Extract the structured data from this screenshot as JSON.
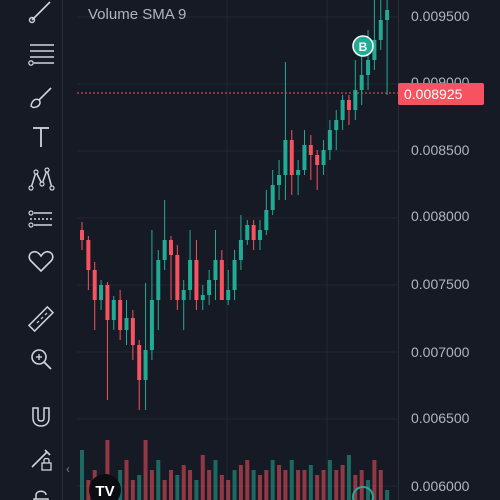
{
  "legend": {
    "text": "Volume SMA 9"
  },
  "price_scale": {
    "labels": [
      "0.009500",
      "0.009000",
      "0.008500",
      "0.008000",
      "0.007500",
      "0.007000",
      "0.006500",
      "0.006000"
    ]
  },
  "last_price": {
    "value": "0.008925",
    "color": "#f7525f"
  },
  "buy_marker": {
    "label": "B",
    "color": "#22ab94"
  },
  "toolbar": {
    "icons": [
      "trend-line-icon",
      "horizontal-lines-icon",
      "brush-icon",
      "text-icon",
      "pattern-icon",
      "prediction-icon",
      "favorites-icon",
      "ruler-icon",
      "zoom-icon",
      "magnet-icon",
      "lock-draw-icon",
      "lock-icon"
    ]
  },
  "colors": {
    "up": "#22ab94",
    "down": "#f7525f",
    "background": "#161a25",
    "grid": "#232732"
  },
  "logo": {
    "text": "TV"
  }
}
